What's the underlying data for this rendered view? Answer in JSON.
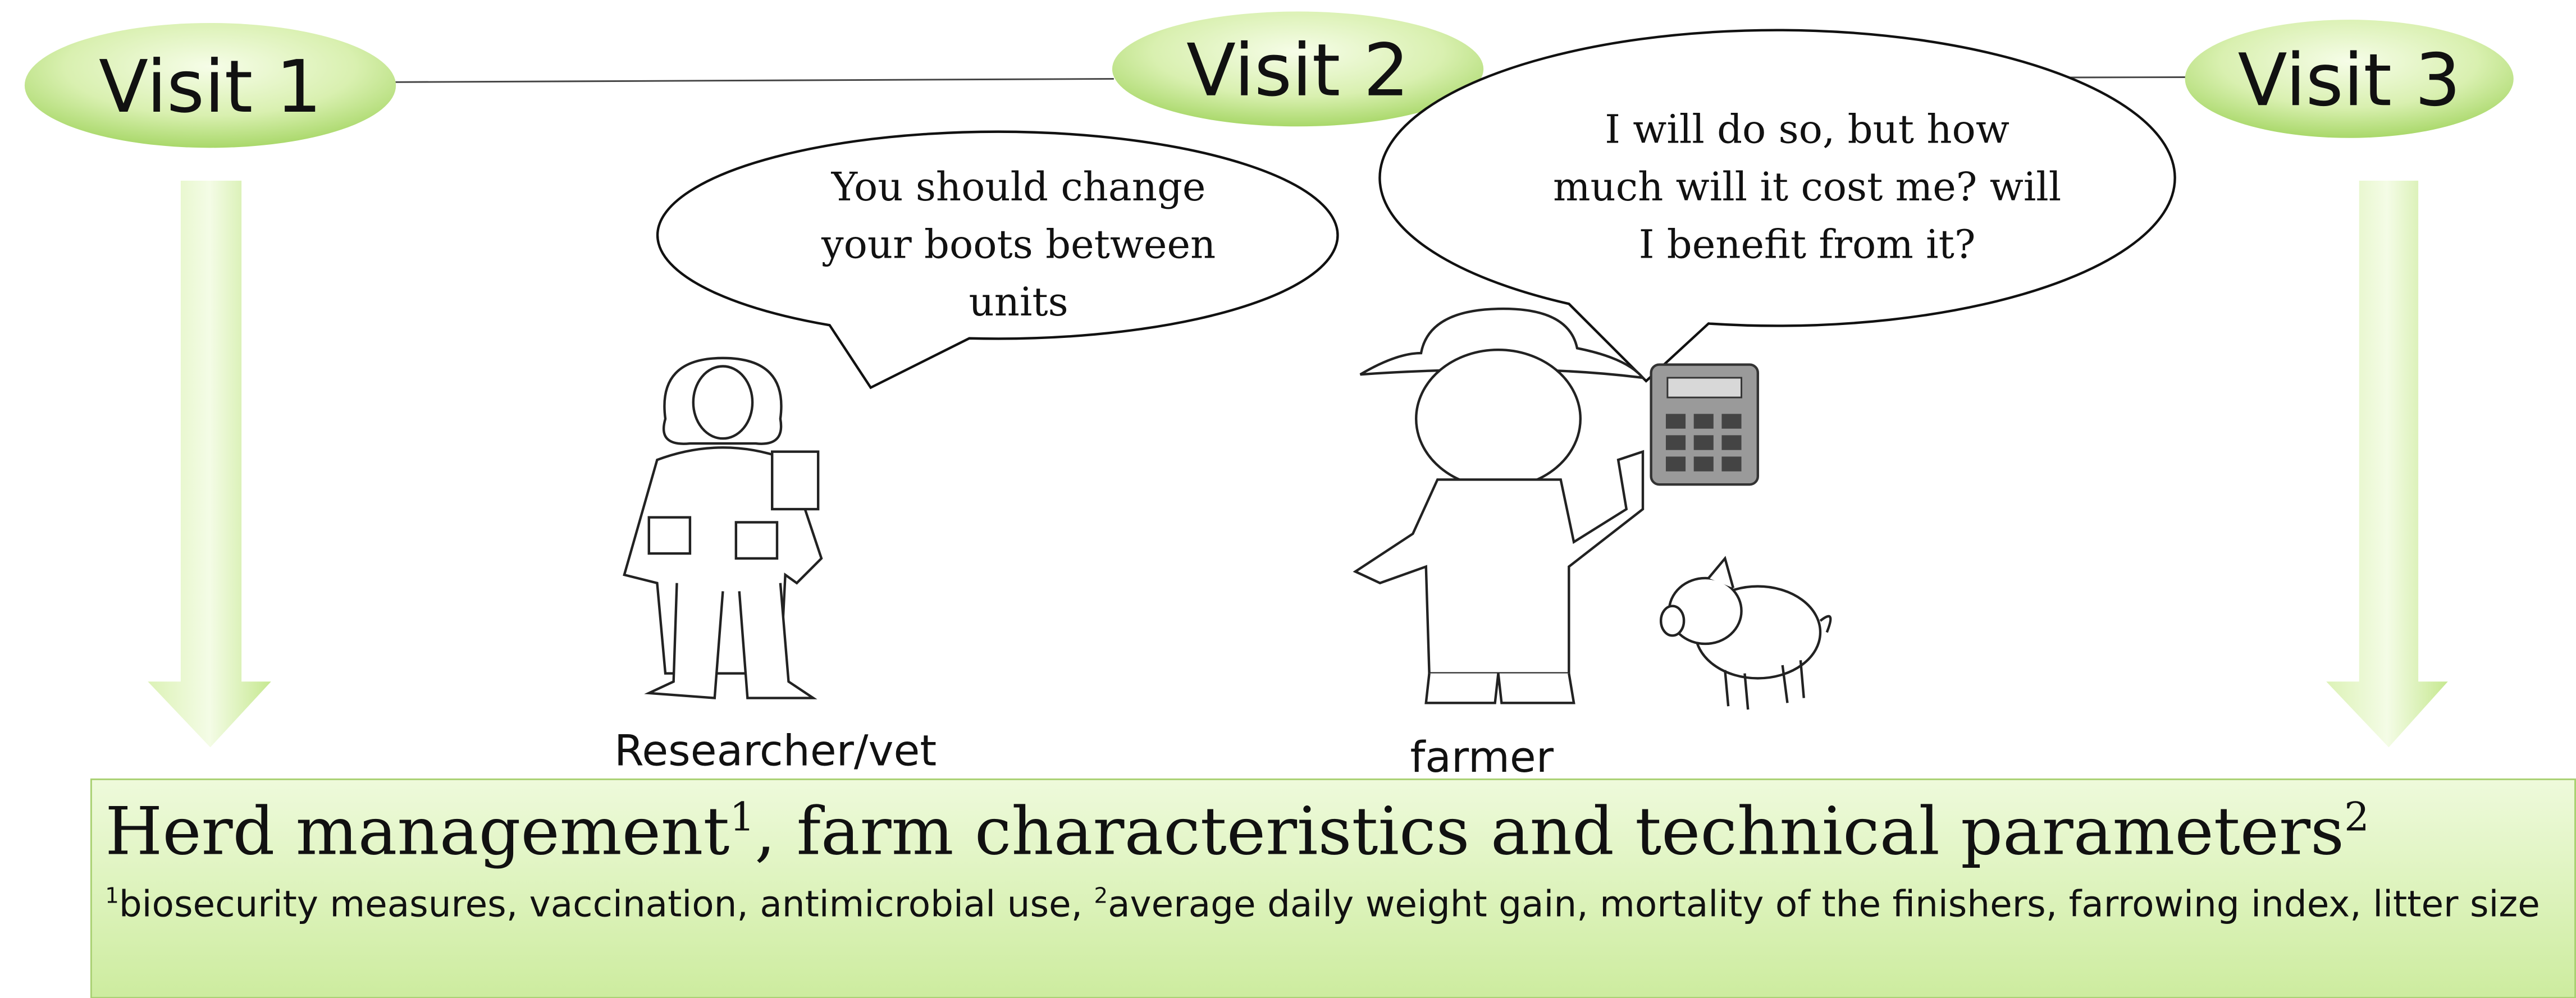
{
  "visits": [
    "Visit 1",
    "Visit 2",
    "Visit 3"
  ],
  "speech": [
    {
      "speaker": "Researcher/vet",
      "lines": [
        "You should change",
        "your boots between",
        "units"
      ]
    },
    {
      "speaker": "farmer",
      "lines": [
        "I will do so, but how",
        "much will it cost me? will",
        "I benefit from it?"
      ]
    }
  ],
  "box": {
    "title": {
      "text1": "Herd management",
      "sup1": "1",
      "text2": ", farm characteristics and technical parameters",
      "sup2": "2"
    },
    "footnote": {
      "sup1": "1",
      "text1": "biosecurity measures, vaccination, antimicrobial use, ",
      "sup2": "2",
      "text2": "average daily weight gain, mortality of the finishers, farrowing index, litter size"
    }
  }
}
